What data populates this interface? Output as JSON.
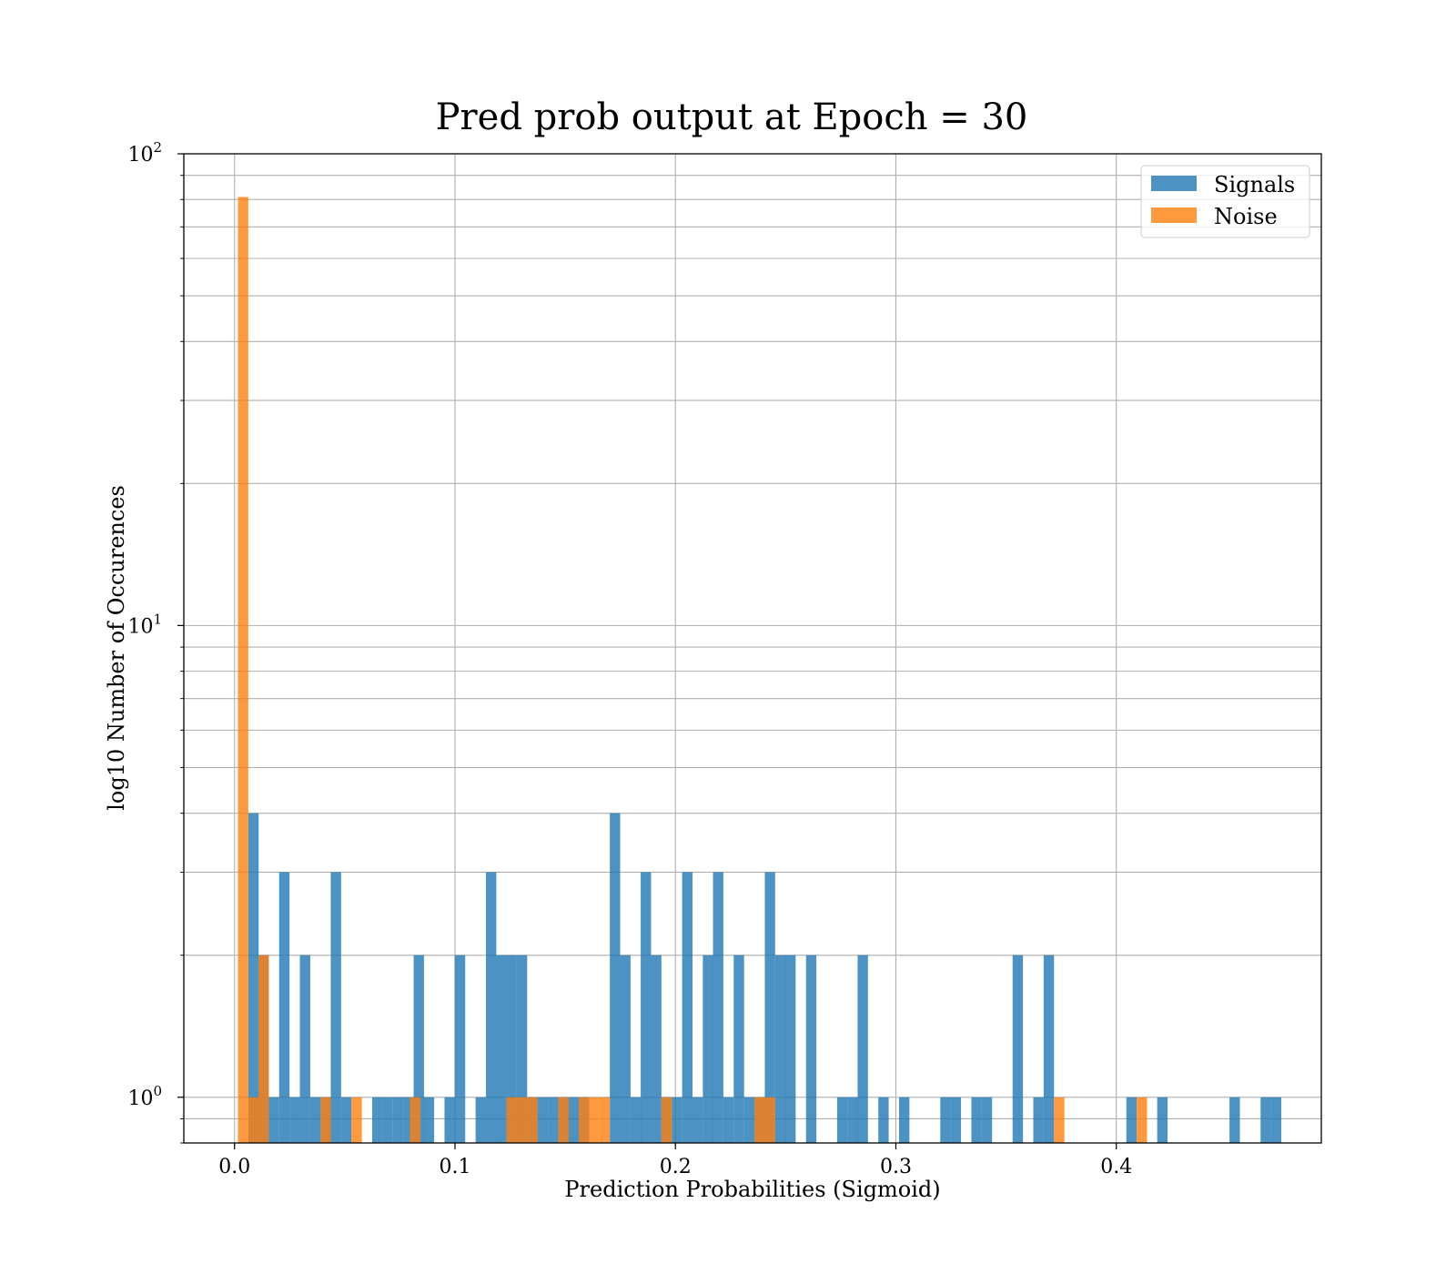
{
  "chart_data": {
    "type": "bar",
    "title": "Pred prob output at Epoch = 30",
    "xlabel": "Prediction Probabilities (Sigmoid)",
    "ylabel": "log10 Number of Occurences",
    "yscale": "log",
    "xlim": [
      -0.023,
      0.493
    ],
    "ylim": [
      0.8,
      100
    ],
    "grid": true,
    "legend": "top-right",
    "bin_width": 0.0047,
    "x_ticks": [
      {
        "value": 0.0,
        "label": "0.0"
      },
      {
        "value": 0.1,
        "label": "0.1"
      },
      {
        "value": 0.2,
        "label": "0.2"
      },
      {
        "value": 0.3,
        "label": "0.3"
      },
      {
        "value": 0.4,
        "label": "0.4"
      }
    ],
    "y_ticks": [
      {
        "value": 1,
        "base": "10",
        "exp": "0"
      },
      {
        "value": 10,
        "base": "10",
        "exp": "1"
      },
      {
        "value": 100,
        "base": "10",
        "exp": "2"
      }
    ],
    "series": [
      {
        "name": "Signals",
        "color": "#1f77b4",
        "bins": [
          [
            0.0086,
            4
          ],
          [
            0.0132,
            2
          ],
          [
            0.0179,
            1
          ],
          [
            0.0226,
            3
          ],
          [
            0.0273,
            1
          ],
          [
            0.032,
            2
          ],
          [
            0.0367,
            1
          ],
          [
            0.0414,
            1
          ],
          [
            0.046,
            3
          ],
          [
            0.0507,
            1
          ],
          [
            0.0648,
            1
          ],
          [
            0.0695,
            1
          ],
          [
            0.0742,
            1
          ],
          [
            0.0789,
            1
          ],
          [
            0.0836,
            2
          ],
          [
            0.0882,
            1
          ],
          [
            0.0976,
            1
          ],
          [
            0.1023,
            2
          ],
          [
            0.1117,
            1
          ],
          [
            0.1164,
            3
          ],
          [
            0.121,
            2
          ],
          [
            0.1257,
            2
          ],
          [
            0.1304,
            2
          ],
          [
            0.1351,
            1
          ],
          [
            0.1398,
            1
          ],
          [
            0.1445,
            1
          ],
          [
            0.1492,
            1
          ],
          [
            0.1538,
            1
          ],
          [
            0.1585,
            1
          ],
          [
            0.1726,
            4
          ],
          [
            0.1773,
            2
          ],
          [
            0.182,
            1
          ],
          [
            0.1866,
            3
          ],
          [
            0.1913,
            2
          ],
          [
            0.196,
            1
          ],
          [
            0.2007,
            1
          ],
          [
            0.2054,
            3
          ],
          [
            0.2101,
            1
          ],
          [
            0.2148,
            2
          ],
          [
            0.2194,
            3
          ],
          [
            0.2241,
            1
          ],
          [
            0.2288,
            2
          ],
          [
            0.2335,
            1
          ],
          [
            0.2382,
            1
          ],
          [
            0.2429,
            3
          ],
          [
            0.2476,
            2
          ],
          [
            0.2522,
            2
          ],
          [
            0.2616,
            2
          ],
          [
            0.2757,
            1
          ],
          [
            0.2804,
            1
          ],
          [
            0.285,
            2
          ],
          [
            0.2944,
            1
          ],
          [
            0.3038,
            1
          ],
          [
            0.3225,
            1
          ],
          [
            0.3272,
            1
          ],
          [
            0.3366,
            1
          ],
          [
            0.3413,
            1
          ],
          [
            0.3553,
            2
          ],
          [
            0.3647,
            1
          ],
          [
            0.3694,
            2
          ],
          [
            0.4069,
            1
          ],
          [
            0.4209,
            1
          ],
          [
            0.4537,
            1
          ],
          [
            0.4678,
            1
          ],
          [
            0.4725,
            1
          ]
        ]
      },
      {
        "name": "Noise",
        "color": "#ff7f0e",
        "bins": [
          [
            0.0039,
            81
          ],
          [
            0.0086,
            1
          ],
          [
            0.0132,
            2
          ],
          [
            0.0414,
            1
          ],
          [
            0.0554,
            1
          ],
          [
            0.082,
            1
          ],
          [
            0.1257,
            1
          ],
          [
            0.1304,
            1
          ],
          [
            0.1351,
            1
          ],
          [
            0.1492,
            1
          ],
          [
            0.1585,
            1
          ],
          [
            0.1632,
            1
          ],
          [
            0.1679,
            1
          ],
          [
            0.196,
            1
          ],
          [
            0.2382,
            1
          ],
          [
            0.2429,
            1
          ],
          [
            0.3741,
            1
          ],
          [
            0.4116,
            1
          ]
        ]
      }
    ]
  }
}
